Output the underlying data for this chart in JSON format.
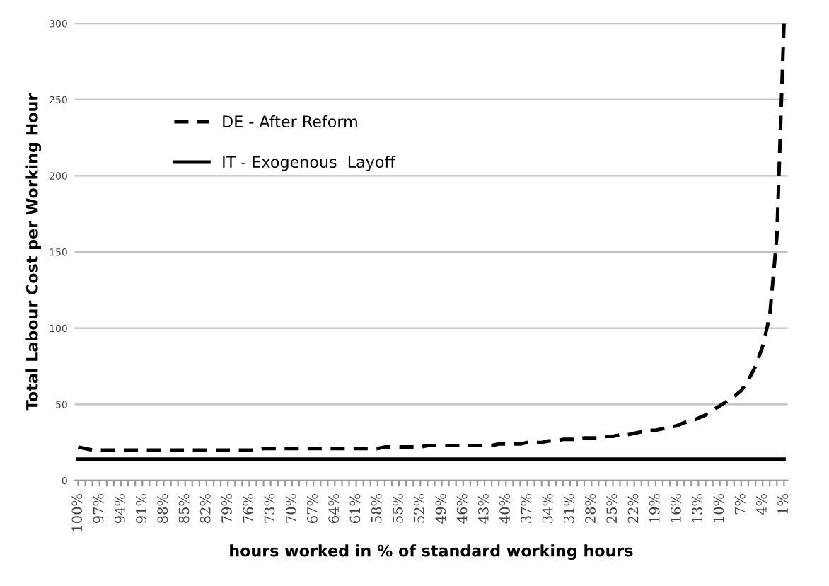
{
  "chart_data": {
    "type": "line",
    "xlabel": "hours worked in % of standard working hours",
    "ylabel": "Total Labour Cost per Working Hour",
    "categories": [
      "100%",
      null,
      null,
      "97%",
      null,
      null,
      "94%",
      null,
      null,
      "91%",
      null,
      null,
      "88%",
      null,
      null,
      "85%",
      null,
      null,
      "82%",
      null,
      null,
      "79%",
      null,
      null,
      "76%",
      null,
      null,
      "73%",
      null,
      null,
      "70%",
      null,
      null,
      "67%",
      null,
      null,
      "64%",
      null,
      null,
      "61%",
      null,
      null,
      "58%",
      null,
      null,
      "55%",
      null,
      null,
      "52%",
      null,
      null,
      "49%",
      null,
      null,
      "46%",
      null,
      null,
      "43%",
      null,
      null,
      "40%",
      null,
      null,
      "37%",
      null,
      null,
      "34%",
      null,
      null,
      "31%",
      null,
      null,
      "28%",
      null,
      null,
      "25%",
      null,
      null,
      "22%",
      null,
      null,
      "19%",
      null,
      null,
      "16%",
      null,
      null,
      "13%",
      null,
      null,
      "10%",
      null,
      null,
      "7%",
      null,
      null,
      "4%",
      null,
      null,
      "1%"
    ],
    "series": [
      {
        "name": "DE - After Reform",
        "color": "#000000",
        "line_style": "dashed",
        "values": [
          22,
          21,
          20,
          20,
          20,
          20,
          20,
          20,
          20,
          20,
          20,
          20,
          20,
          20,
          20,
          20,
          20,
          20,
          20,
          20,
          20,
          20,
          20,
          20,
          20,
          20,
          21,
          21,
          21,
          21,
          21,
          21,
          21,
          21,
          21,
          21,
          21,
          21,
          21,
          21,
          21,
          21,
          21,
          22,
          22,
          22,
          22,
          22,
          22,
          23,
          23,
          23,
          23,
          23,
          23,
          23,
          23,
          23,
          23,
          24,
          24,
          24,
          24,
          25,
          25,
          25,
          26,
          26,
          27,
          27,
          27,
          28,
          28,
          28,
          29,
          29,
          30,
          30,
          31,
          32,
          33,
          33,
          34,
          35,
          36,
          38,
          39,
          41,
          43,
          46,
          49,
          52,
          55,
          59,
          66,
          75,
          88,
          108,
          160,
          300
        ]
      },
      {
        "name": "IT - Exogenous  Layoff",
        "color": "#000000",
        "line_style": "solid",
        "values": [
          14,
          14,
          14,
          14,
          14,
          14,
          14,
          14,
          14,
          14,
          14,
          14,
          14,
          14,
          14,
          14,
          14,
          14,
          14,
          14,
          14,
          14,
          14,
          14,
          14,
          14,
          14,
          14,
          14,
          14,
          14,
          14,
          14,
          14,
          14,
          14,
          14,
          14,
          14,
          14,
          14,
          14,
          14,
          14,
          14,
          14,
          14,
          14,
          14,
          14,
          14,
          14,
          14,
          14,
          14,
          14,
          14,
          14,
          14,
          14,
          14,
          14,
          14,
          14,
          14,
          14,
          14,
          14,
          14,
          14,
          14,
          14,
          14,
          14,
          14,
          14,
          14,
          14,
          14,
          14,
          14,
          14,
          14,
          14,
          14,
          14,
          14,
          14,
          14,
          14,
          14,
          14,
          14,
          14,
          14,
          14,
          14,
          14,
          14,
          14
        ]
      }
    ],
    "ylim": [
      0,
      300
    ],
    "yticks": [
      0,
      50,
      100,
      150,
      200,
      250,
      300
    ],
    "grid": "y",
    "legend": "top left",
    "marker": "none"
  }
}
